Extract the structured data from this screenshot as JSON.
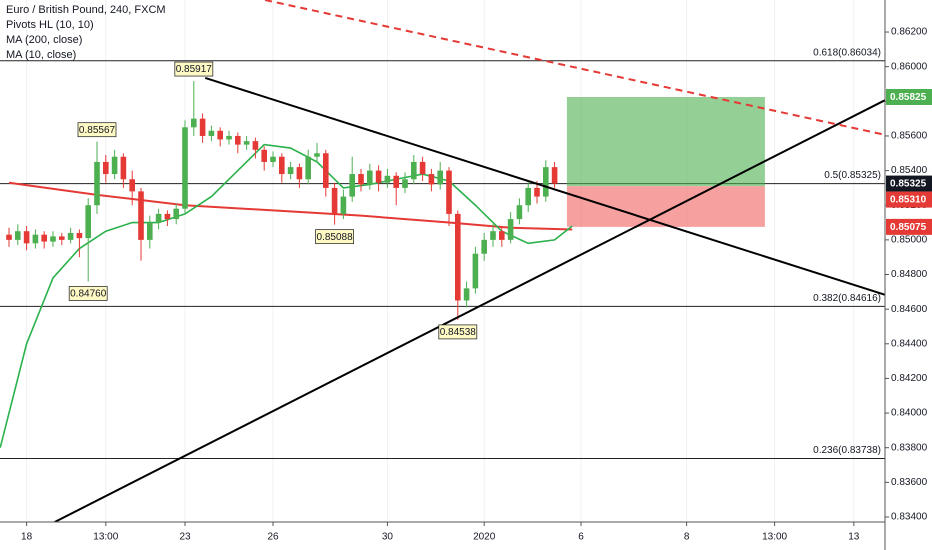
{
  "chart_data": {
    "type": "candlestick",
    "legend": [
      "Euro / British Pound, 240, FXCM",
      "Pivots HL (10, 10)",
      "MA (200, close)",
      "MA (10, close)"
    ],
    "categories": [
      null,
      null,
      "18",
      null,
      null,
      null,
      null,
      null,
      null,
      null,
      null,
      "13:00",
      null,
      null,
      null,
      null,
      null,
      null,
      null,
      null,
      "23",
      null,
      null,
      null,
      null,
      null,
      null,
      null,
      null,
      null,
      "26",
      null,
      null,
      null,
      null,
      null,
      null,
      null,
      null,
      null,
      null,
      null,
      null,
      "30",
      null,
      null,
      null,
      null,
      null,
      null,
      null,
      null,
      null,
      null,
      "2020",
      null,
      null,
      null,
      null,
      null,
      null,
      null,
      null,
      null,
      null,
      "6",
      null,
      null,
      null,
      null,
      null,
      null,
      null,
      null,
      null,
      null,
      null,
      "8",
      null,
      null,
      null,
      null,
      null,
      null,
      null,
      null,
      null,
      "13:00",
      null,
      null,
      null,
      null,
      null,
      null,
      null,
      null,
      "13",
      null,
      null,
      null
    ],
    "open": [
      0.8503,
      0.85,
      0.8505,
      0.8498,
      0.8503,
      0.8499,
      0.8502,
      0.85,
      0.8504,
      0.8501,
      0.852,
      0.8545,
      0.8538,
      0.8548,
      0.8535,
      0.8528,
      0.85,
      0.851,
      0.8515,
      0.8512,
      0.8518,
      0.8565,
      0.857,
      0.856,
      0.8563,
      0.8558,
      0.856,
      0.8555,
      0.8557,
      0.8552,
      0.8545,
      0.8548,
      0.8538,
      0.8542,
      0.8535,
      0.8548,
      0.855,
      0.853,
      0.8515,
      0.8525,
      0.8538,
      0.8532,
      0.854,
      0.8533,
      0.8537,
      0.853,
      0.8535,
      0.8545,
      0.8538,
      0.8532,
      0.854,
      0.8515,
      0.8465,
      0.8472,
      0.8492,
      0.85,
      0.8505,
      0.85,
      0.8512,
      0.852,
      0.853,
      0.8525,
      0.8542,
      null,
      null,
      null,
      null,
      null,
      null,
      null,
      null,
      null,
      null,
      null,
      null,
      null,
      null,
      null,
      null,
      null,
      null,
      null,
      null,
      null,
      null,
      null,
      null,
      null,
      null,
      null,
      null,
      null,
      null,
      null,
      null,
      null,
      null,
      null,
      null,
      null
    ],
    "high": [
      0.8507,
      0.8509,
      0.8508,
      0.8506,
      0.8505,
      0.8505,
      0.8504,
      0.8507,
      0.8506,
      0.8524,
      0.85567,
      0.8549,
      0.8552,
      0.855,
      0.854,
      0.853,
      0.8514,
      0.8518,
      0.8517,
      0.8521,
      0.8569,
      0.85917,
      0.8573,
      0.8566,
      0.8565,
      0.8563,
      0.8562,
      0.856,
      0.8559,
      0.8554,
      0.8551,
      0.855,
      0.8545,
      0.8544,
      0.8552,
      0.8556,
      0.8552,
      0.8533,
      0.8529,
      0.8548,
      0.8541,
      0.8544,
      0.8543,
      0.8541,
      0.8539,
      0.8539,
      0.8549,
      0.8548,
      0.8541,
      0.8545,
      0.8542,
      0.8517,
      0.8476,
      0.8496,
      0.8504,
      0.8509,
      0.8508,
      0.8516,
      0.8524,
      0.8534,
      0.8534,
      0.8546,
      0.8545,
      null,
      null,
      null,
      null,
      null,
      null,
      null,
      null,
      null,
      null,
      null,
      null,
      null,
      null,
      null,
      null,
      null,
      null,
      null,
      null,
      null,
      null,
      null,
      null,
      null,
      null,
      null,
      null,
      null,
      null,
      null,
      null,
      null,
      null,
      null,
      null,
      null
    ],
    "low": [
      0.8496,
      0.8497,
      0.8494,
      0.8495,
      0.8495,
      0.8496,
      0.8497,
      0.8498,
      0.849,
      0.8476,
      0.8515,
      0.8533,
      0.8535,
      0.853,
      0.852,
      0.8488,
      0.8495,
      0.8506,
      0.8508,
      0.8509,
      0.8515,
      0.856,
      0.8556,
      0.8557,
      0.8554,
      0.8555,
      0.855,
      0.8552,
      0.8547,
      0.854,
      0.8542,
      0.8533,
      0.8535,
      0.853,
      0.8532,
      0.8545,
      0.8525,
      0.85088,
      0.8512,
      0.8522,
      0.8528,
      0.8529,
      0.8528,
      0.853,
      0.852,
      0.8527,
      0.8532,
      0.8534,
      0.8528,
      0.8529,
      0.8508,
      0.84538,
      0.8461,
      0.8469,
      0.8488,
      0.8496,
      0.8496,
      0.8498,
      0.8509,
      0.8516,
      0.8521,
      0.8522,
      0.853,
      null,
      null,
      null,
      null,
      null,
      null,
      null,
      null,
      null,
      null,
      null,
      null,
      null,
      null,
      null,
      null,
      null,
      null,
      null,
      null,
      null,
      null,
      null,
      null,
      null,
      null,
      null,
      null,
      null,
      null,
      null,
      null,
      null,
      null,
      null,
      null,
      null
    ],
    "close": [
      0.85,
      0.8505,
      0.8498,
      0.8503,
      0.8499,
      0.8502,
      0.85,
      0.8504,
      0.8501,
      0.852,
      0.8545,
      0.8538,
      0.8548,
      0.8535,
      0.8528,
      0.85,
      0.851,
      0.8515,
      0.8512,
      0.8518,
      0.8565,
      0.857,
      0.856,
      0.8563,
      0.8558,
      0.856,
      0.8555,
      0.8557,
      0.8552,
      0.8545,
      0.8548,
      0.8538,
      0.8542,
      0.8535,
      0.8548,
      0.855,
      0.853,
      0.8515,
      0.8525,
      0.8538,
      0.8532,
      0.854,
      0.8533,
      0.8537,
      0.853,
      0.8535,
      0.8545,
      0.8538,
      0.8532,
      0.854,
      0.8515,
      0.8465,
      0.8472,
      0.8492,
      0.85,
      0.8505,
      0.85,
      0.8512,
      0.852,
      0.853,
      0.8525,
      0.8542,
      0.85325,
      null,
      null,
      null,
      null,
      null,
      null,
      null,
      null,
      null,
      null,
      null,
      null,
      null,
      null,
      null,
      null,
      null,
      null,
      null,
      null,
      null,
      null,
      null,
      null,
      null,
      null,
      null,
      null,
      null,
      null,
      null,
      null,
      null,
      null,
      null,
      null,
      null
    ],
    "up_color": "#4caf50",
    "down_color": "#e53935",
    "moving_averages": [
      {
        "color": "#e53935",
        "x": [
          0,
          10,
          20,
          30,
          40,
          50,
          57,
          64
        ],
        "values": [
          0.8533,
          0.8526,
          0.852,
          0.8517,
          0.8514,
          0.851,
          0.8507,
          0.8506
        ]
      },
      {
        "color": "#2bb24c",
        "x": [
          -1,
          2,
          5,
          8,
          11,
          14,
          17,
          20,
          23,
          26,
          29,
          32,
          35,
          38,
          41,
          44,
          47,
          50,
          53,
          56,
          59,
          62,
          64
        ],
        "values": [
          0.838,
          0.844,
          0.8478,
          0.8495,
          0.8505,
          0.851,
          0.851,
          0.8515,
          0.8525,
          0.854,
          0.8555,
          0.8553,
          0.8545,
          0.853,
          0.8532,
          0.8535,
          0.8538,
          0.8534,
          0.852,
          0.8505,
          0.8498,
          0.85,
          0.8508
        ]
      }
    ],
    "pivots": [
      {
        "x": 21,
        "value": 0.85917,
        "label": "0.85917",
        "side": "high"
      },
      {
        "x": 10,
        "value": 0.85567,
        "label": "0.85567",
        "side": "high"
      },
      {
        "x": 9,
        "value": 0.8476,
        "label": "0.84760",
        "side": "low"
      },
      {
        "x": 37,
        "value": 0.85088,
        "label": "0.85088",
        "side": "low"
      },
      {
        "x": 51,
        "value": 0.84538,
        "label": "0.84538",
        "side": "low"
      }
    ],
    "trend_lines": [
      {
        "x": [
          22.3,
          99.6
        ],
        "values": [
          0.85935,
          0.84682
        ],
        "color": "#000000",
        "dashed": false
      },
      {
        "x": [
          5.2,
          99.6
        ],
        "values": [
          0.83371,
          0.85808
        ],
        "color": "#000000",
        "dashed": false
      },
      {
        "x": [
          29.1,
          99.6
        ],
        "values": [
          0.86385,
          0.85606
        ],
        "color": "#e53935",
        "dashed": true
      }
    ],
    "fib_levels": [
      {
        "value": 0.86034,
        "label": "0.618(0.86034)"
      },
      {
        "value": 0.85325,
        "label": "0.5(0.85325)"
      },
      {
        "value": 0.84616,
        "label": "0.382(0.84616)"
      },
      {
        "value": 0.83738,
        "label": "0.236(0.83738)"
      }
    ],
    "position": {
      "x": [
        63.4,
        85.9
      ],
      "entry": 0.8531,
      "target": 0.85825,
      "stop": 0.85075
    },
    "price_labels": [
      {
        "value": 0.85825,
        "label": "0.85825",
        "color": "#4caf50"
      },
      {
        "value": 0.85325,
        "label": "0.85325",
        "color": "#131722"
      },
      {
        "value": 0.8531,
        "label": "0.85310",
        "color": "#e53935"
      },
      {
        "value": 0.85075,
        "label": "0.85075",
        "color": "#e53935"
      }
    ],
    "ylim": [
      0.83371,
      0.86385
    ],
    "yticks": [
      {
        "value": 0.834,
        "label": "0.83400"
      },
      {
        "value": 0.836,
        "label": "0.83600"
      },
      {
        "value": 0.838,
        "label": "0.83800"
      },
      {
        "value": 0.84,
        "label": "0.84000"
      },
      {
        "value": 0.842,
        "label": "0.84200"
      },
      {
        "value": 0.844,
        "label": "0.84400"
      },
      {
        "value": 0.846,
        "label": "0.84600"
      },
      {
        "value": 0.848,
        "label": "0.84800"
      },
      {
        "value": 0.85,
        "label": "0.85000"
      },
      {
        "value": 0.852,
        "label": "0.85200"
      },
      {
        "value": 0.854,
        "label": "0.85400"
      },
      {
        "value": 0.856,
        "label": "0.85600"
      },
      {
        "value": 0.858,
        "label": "0.85800"
      },
      {
        "value": 0.86,
        "label": "0.86000"
      },
      {
        "value": 0.862,
        "label": "0.86200"
      }
    ],
    "grid": true
  }
}
